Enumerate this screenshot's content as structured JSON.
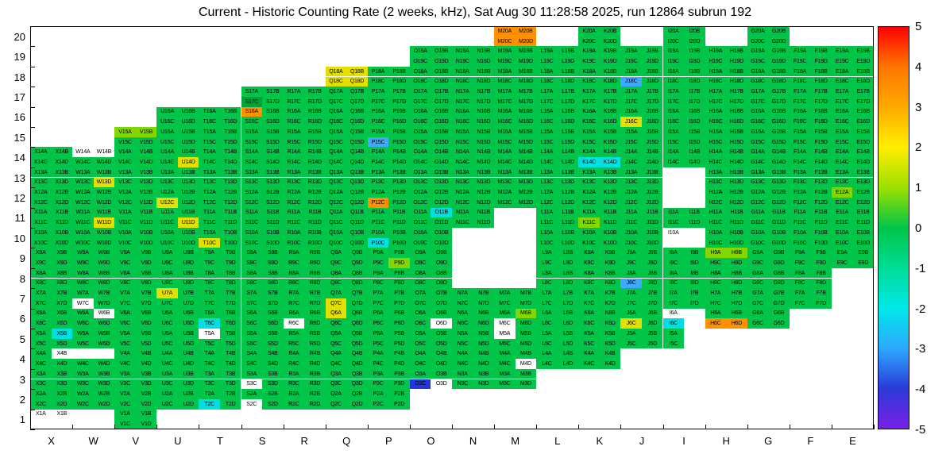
{
  "chart_data": {
    "type": "heatmap",
    "title": "Current - Historic Counting Rate (2 weeks, kHz), Sat Aug 30 11:28:58 2025, run 12864 subrun 192",
    "x_labels": [
      "X",
      "W",
      "V",
      "U",
      "T",
      "S",
      "R",
      "Q",
      "P",
      "O",
      "N",
      "M",
      "L",
      "K",
      "J",
      "I",
      "H",
      "G",
      "F",
      "E"
    ],
    "y_labels": [
      "20",
      "19",
      "18",
      "17",
      "16",
      "15",
      "14",
      "13",
      "12",
      "11",
      "10",
      "9",
      "8",
      "7",
      "6",
      "5",
      "4",
      "3",
      "2",
      "1"
    ],
    "value_range": [
      -5,
      5
    ],
    "legend_position": "right",
    "grid": false,
    "suffixes": [
      "A",
      "B",
      "C",
      "D"
    ],
    "colorbar": {
      "tick_labels": [
        "5",
        "4",
        "3",
        "2",
        "1",
        "0",
        "-1",
        "-2",
        "-3",
        "-4",
        "-5"
      ],
      "gradient": [
        "#ff0000",
        "#ff7700",
        "#ffaa00",
        "#ffee00",
        "#9de000",
        "#00c548",
        "#00dc96",
        "#00e8e8",
        "#2da9ff",
        "#2a3bd6",
        "#7a1fe8"
      ]
    },
    "palette": {
      "default": {
        "hex": "#00c548",
        "value": 0
      },
      "darkgreen": {
        "hex": "#00a43a",
        "value": 0.5
      },
      "chartreuse": {
        "hex": "#84d600",
        "value": 1
      },
      "yellow": {
        "hex": "#e3e000",
        "value": 2
      },
      "orange": {
        "hex": "#ff9000",
        "value": 3
      },
      "cyan": {
        "hex": "#00e0e0",
        "value": -2
      },
      "lightblue": {
        "hex": "#3fa8ff",
        "value": -3
      },
      "blue": {
        "hex": "#2335e0",
        "value": -4
      },
      "white": {
        "hex": "#ffffff",
        "value": null
      }
    },
    "grid_rows": [
      {
        "row": 20,
        "cols": "MKIG"
      },
      {
        "row": 19,
        "cols": "ONMLKJIHGFE"
      },
      {
        "row": 18,
        "cols": "QPONMLKJIHGFE"
      },
      {
        "row": 17,
        "cols": "SRQPONMLKJIHGFE"
      },
      {
        "row": 16,
        "cols": "UTSRQPONMLKJIHGFE"
      },
      {
        "row": 15,
        "cols": "VUTSRQPONMLKJIHGFE"
      },
      {
        "row": 14,
        "cols": "XWVUTSRQPONMLKJIHGFE"
      },
      {
        "row": 13,
        "cols": "XWVUTSRQPONMLKJHGFE"
      },
      {
        "row": 12,
        "cols": "XWVUTSRQPONMLKJHGFE"
      },
      {
        "row": 11,
        "cols": "XWVUTSRQPONLKJIHGFE"
      },
      {
        "row": 10,
        "cols": "XWVUTSRQPOLKJIHGFE"
      },
      {
        "row": 9,
        "cols": "XWVUTSRQPOLKJIHGFE"
      },
      {
        "row": 8,
        "cols": "XWVUTSRQPOLKJIHGF"
      },
      {
        "row": 7,
        "cols": "XWVUTSRQPONMLKJIHGF"
      },
      {
        "row": 6,
        "cols": "XWVUTSRQPONMLKJIHG"
      },
      {
        "row": 5,
        "cols": "XWVUTSRQPONMLKJI"
      },
      {
        "row": 4,
        "cols": "XWVUTSRQPONMLK"
      },
      {
        "row": 3,
        "cols": "XWVUTSRQPONM"
      },
      {
        "row": 2,
        "cols": "XWVUTSRQP"
      },
      {
        "row": 1,
        "cols": "XV"
      }
    ],
    "cell_color_overrides": {
      "M20A": "orange",
      "M20B": "orange",
      "M20C": "orange",
      "M20D": "orange",
      "Q18A": "yellow",
      "Q18B": "yellow",
      "Q18C": "yellow",
      "Q18D": "yellow",
      "J18C": "lightblue",
      "S17C": "darkgreen",
      "S16A": "orange",
      "J16C": "yellow",
      "V15A": "chartreuse",
      "V15B": "chartreuse",
      "P15C": "lightblue",
      "W14A": "white",
      "W14B": "white",
      "U14D": "yellow",
      "K14C": "cyan",
      "K14D": "cyan",
      "W13D": "yellow",
      "U12C": "yellow",
      "P12C": "orange",
      "E12A": "chartreuse",
      "W11D": "yellow",
      "U11D": "yellow",
      "O11B": "cyan",
      "K11C": "chartreuse",
      "T10C": "yellow",
      "P10C": "cyan",
      "I10A": "white",
      "I10B": "white",
      "I10C": "white",
      "I10D": "white",
      "P9D": "chartreuse",
      "H9A": "chartreuse",
      "H9B": "chartreuse",
      "J8C": "lightblue",
      "U7A": "yellow",
      "W7C": "white",
      "Q7C": "yellow",
      "W6B": "white",
      "T6C": "cyan",
      "R6C": "white",
      "Q6A": "yellow",
      "O6D": "white",
      "M6B": "chartreuse",
      "M6C": "white",
      "J6C": "yellow",
      "I6A": "white",
      "I6B": "white",
      "I6C": "cyan",
      "I6D": "white",
      "H6C": "orange",
      "H6D": "orange",
      "X5B": "cyan",
      "T5A": "white",
      "M5A": "white",
      "I5B": "white",
      "I5D": "white",
      "X4B": "white",
      "W4A": "white",
      "W4B": "white",
      "M4D": "white",
      "S3C": "white",
      "O3C": "blue",
      "O3D": "white",
      "T2C": "cyan",
      "S2C": "white",
      "X1A": "white",
      "X1B": "white",
      "X1C": "white",
      "X1D": "white"
    },
    "unlabeled_cells": [
      "I10B",
      "I10C",
      "I10D",
      "I6B",
      "I6D",
      "I5B",
      "I5D",
      "W4A",
      "W4B",
      "X1C",
      "X1D"
    ]
  }
}
